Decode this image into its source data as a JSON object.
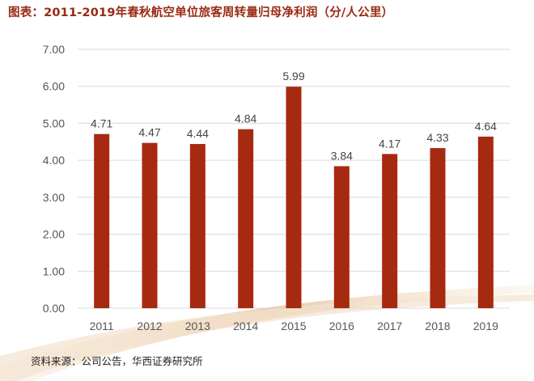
{
  "title": "图表：2011-2019年春秋航空单位旅客周转量归母净利润（分/人公里）",
  "source": "资料来源：公司公告，华西证券研究所",
  "colors": {
    "bar": "#a52a10",
    "title": "#9a2a12",
    "decoration": "#e8c8a4"
  },
  "chart_data": {
    "type": "bar",
    "title": "图表：2011-2019年春秋航空单位旅客周转量归母净利润（分/人公里）",
    "categories": [
      "2011",
      "2012",
      "2013",
      "2014",
      "2015",
      "2016",
      "2017",
      "2018",
      "2019"
    ],
    "values": [
      4.71,
      4.47,
      4.44,
      4.84,
      5.99,
      3.84,
      4.17,
      4.33,
      4.64
    ],
    "data_labels": [
      "4.71",
      "4.47",
      "4.44",
      "4.84",
      "5.99",
      "3.84",
      "4.17",
      "4.33",
      "4.64"
    ],
    "y_ticks": [
      "0.00",
      "1.00",
      "2.00",
      "3.00",
      "4.00",
      "5.00",
      "6.00",
      "7.00"
    ],
    "ylim": [
      0,
      7
    ],
    "grid": true,
    "legend": "none",
    "xlabel": "",
    "ylabel": ""
  }
}
